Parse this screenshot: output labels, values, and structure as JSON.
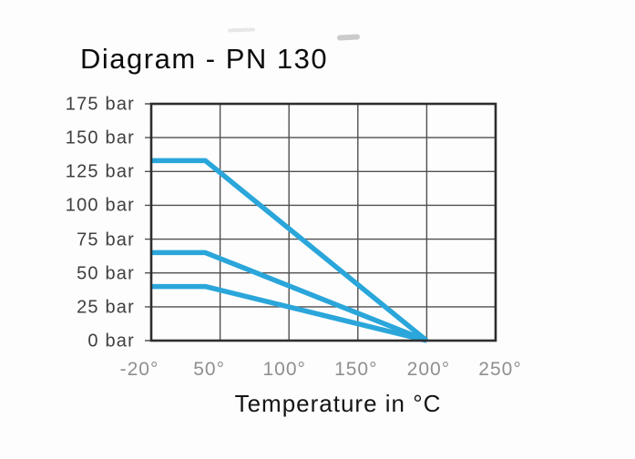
{
  "page": {
    "background_color": "#fdfdfd"
  },
  "chart_data": {
    "type": "line",
    "title": "Diagram - PN 130",
    "xlabel": "Temperature in °C",
    "ylabel": "",
    "x_tick_labels": [
      "-20°",
      "50°",
      "100°",
      "150°",
      "200°",
      "250°"
    ],
    "x_tick_values": [
      -20,
      50,
      100,
      150,
      200,
      250
    ],
    "y_tick_labels": [
      "175 bar",
      "150 bar",
      "125 bar",
      "100 bar",
      "75 bar",
      "50 bar",
      "25 bar",
      "0 bar"
    ],
    "y_tick_values": [
      175,
      150,
      125,
      100,
      75,
      50,
      25,
      0
    ],
    "ylim": [
      0,
      175
    ],
    "xlim": [
      -20,
      250
    ],
    "grid": true,
    "legend": "none",
    "line_color": "#2aa6da",
    "grid_color": "#4f4f4f",
    "border_color": "#2e2e2e",
    "series": [
      {
        "name": "upper-curve",
        "points": [
          [
            -20,
            133
          ],
          [
            35,
            133
          ],
          [
            200,
            0
          ]
        ]
      },
      {
        "name": "middle-curve",
        "points": [
          [
            -20,
            65
          ],
          [
            35,
            65
          ],
          [
            200,
            0
          ]
        ]
      },
      {
        "name": "lower-curve",
        "points": [
          [
            -20,
            40
          ],
          [
            35,
            40
          ],
          [
            200,
            0
          ]
        ]
      }
    ]
  }
}
